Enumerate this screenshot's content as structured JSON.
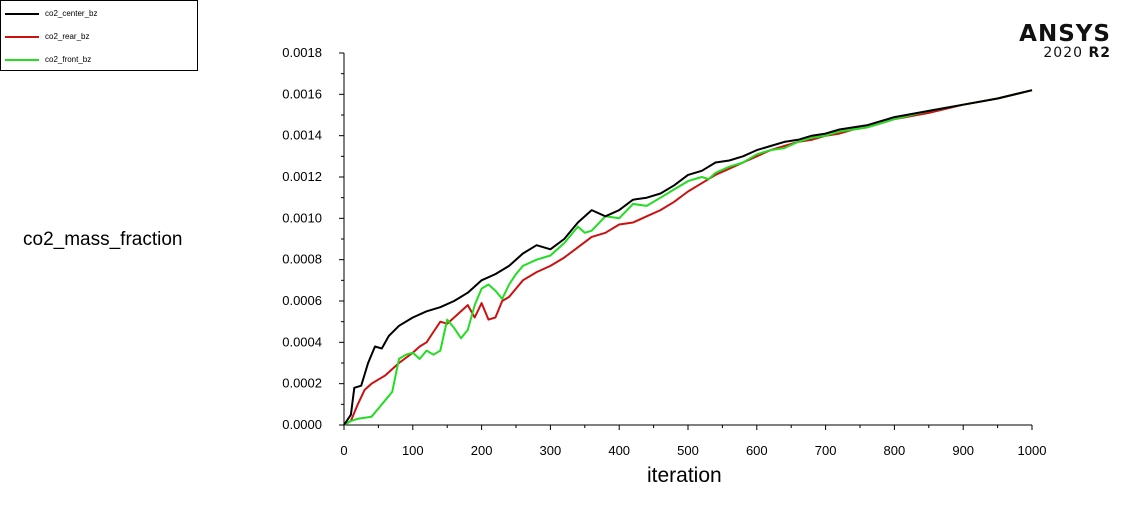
{
  "brand": {
    "name": "ANSYS",
    "version_year": "2020",
    "version_release": "R2"
  },
  "chart_data": {
    "type": "line",
    "title": "",
    "xlabel": "iteration",
    "ylabel": "co2_mass_fraction",
    "xlim": [
      0,
      1000
    ],
    "ylim": [
      0,
      0.0018
    ],
    "x_ticks": [
      "0",
      "100",
      "200",
      "300",
      "400",
      "500",
      "600",
      "700",
      "800",
      "900",
      "1000"
    ],
    "y_ticks": [
      "0.0000",
      "0.0002",
      "0.0004",
      "0.0006",
      "0.0008",
      "0.0010",
      "0.0012",
      "0.0014",
      "0.0016",
      "0.0018"
    ],
    "grid": false,
    "legend_position": "top-left",
    "series": [
      {
        "name": "co2_center_bz",
        "color": "#000000",
        "points": [
          [
            0,
            0
          ],
          [
            10,
            5e-05
          ],
          [
            15,
            0.00018
          ],
          [
            25,
            0.00019
          ],
          [
            35,
            0.0003
          ],
          [
            45,
            0.00038
          ],
          [
            55,
            0.00037
          ],
          [
            65,
            0.00043
          ],
          [
            80,
            0.00048
          ],
          [
            100,
            0.00052
          ],
          [
            120,
            0.00055
          ],
          [
            140,
            0.00057
          ],
          [
            160,
            0.0006
          ],
          [
            180,
            0.00064
          ],
          [
            200,
            0.0007
          ],
          [
            220,
            0.00073
          ],
          [
            240,
            0.00077
          ],
          [
            260,
            0.00083
          ],
          [
            280,
            0.00087
          ],
          [
            300,
            0.00085
          ],
          [
            320,
            0.0009
          ],
          [
            340,
            0.00098
          ],
          [
            360,
            0.00104
          ],
          [
            380,
            0.00101
          ],
          [
            400,
            0.00104
          ],
          [
            420,
            0.00109
          ],
          [
            440,
            0.0011
          ],
          [
            460,
            0.00112
          ],
          [
            480,
            0.00116
          ],
          [
            500,
            0.00121
          ],
          [
            520,
            0.00123
          ],
          [
            540,
            0.00127
          ],
          [
            560,
            0.00128
          ],
          [
            580,
            0.0013
          ],
          [
            600,
            0.00133
          ],
          [
            620,
            0.00135
          ],
          [
            640,
            0.00137
          ],
          [
            660,
            0.00138
          ],
          [
            680,
            0.0014
          ],
          [
            700,
            0.00141
          ],
          [
            720,
            0.00143
          ],
          [
            740,
            0.00144
          ],
          [
            760,
            0.00145
          ],
          [
            780,
            0.00147
          ],
          [
            800,
            0.00149
          ],
          [
            850,
            0.00152
          ],
          [
            900,
            0.00155
          ],
          [
            950,
            0.00158
          ],
          [
            1000,
            0.00162
          ]
        ]
      },
      {
        "name": "co2_rear_bz",
        "color": "#cc1111",
        "points": [
          [
            0,
            0
          ],
          [
            10,
            2e-05
          ],
          [
            20,
            0.0001
          ],
          [
            30,
            0.00017
          ],
          [
            40,
            0.0002
          ],
          [
            60,
            0.00024
          ],
          [
            80,
            0.0003
          ],
          [
            100,
            0.00035
          ],
          [
            110,
            0.00038
          ],
          [
            120,
            0.0004
          ],
          [
            130,
            0.00045
          ],
          [
            140,
            0.0005
          ],
          [
            150,
            0.00049
          ],
          [
            160,
            0.00052
          ],
          [
            170,
            0.00055
          ],
          [
            180,
            0.00058
          ],
          [
            190,
            0.00052
          ],
          [
            200,
            0.00059
          ],
          [
            210,
            0.00051
          ],
          [
            220,
            0.00052
          ],
          [
            230,
            0.0006
          ],
          [
            240,
            0.00062
          ],
          [
            250,
            0.00066
          ],
          [
            260,
            0.0007
          ],
          [
            280,
            0.00074
          ],
          [
            300,
            0.00077
          ],
          [
            320,
            0.00081
          ],
          [
            340,
            0.00086
          ],
          [
            360,
            0.00091
          ],
          [
            380,
            0.00093
          ],
          [
            400,
            0.00097
          ],
          [
            420,
            0.00098
          ],
          [
            440,
            0.00101
          ],
          [
            460,
            0.00104
          ],
          [
            480,
            0.00108
          ],
          [
            500,
            0.00113
          ],
          [
            520,
            0.00117
          ],
          [
            540,
            0.00121
          ],
          [
            560,
            0.00124
          ],
          [
            580,
            0.00127
          ],
          [
            600,
            0.0013
          ],
          [
            620,
            0.00133
          ],
          [
            640,
            0.00135
          ],
          [
            660,
            0.00137
          ],
          [
            680,
            0.00138
          ],
          [
            700,
            0.0014
          ],
          [
            720,
            0.00141
          ],
          [
            740,
            0.00143
          ],
          [
            760,
            0.00144
          ],
          [
            780,
            0.00146
          ],
          [
            800,
            0.00148
          ],
          [
            850,
            0.00151
          ],
          [
            900,
            0.00155
          ],
          [
            950,
            0.00158
          ],
          [
            1000,
            0.00162
          ]
        ]
      },
      {
        "name": "co2_front_bz",
        "color": "#22dd22",
        "points": [
          [
            0,
            0
          ],
          [
            10,
            2e-05
          ],
          [
            20,
            3e-05
          ],
          [
            40,
            4e-05
          ],
          [
            50,
            8e-05
          ],
          [
            60,
            0.00012
          ],
          [
            70,
            0.00016
          ],
          [
            80,
            0.00032
          ],
          [
            90,
            0.00034
          ],
          [
            100,
            0.00035
          ],
          [
            110,
            0.00032
          ],
          [
            120,
            0.00036
          ],
          [
            130,
            0.00034
          ],
          [
            140,
            0.00036
          ],
          [
            150,
            0.00051
          ],
          [
            160,
            0.00047
          ],
          [
            170,
            0.00042
          ],
          [
            180,
            0.00046
          ],
          [
            190,
            0.00058
          ],
          [
            200,
            0.00066
          ],
          [
            210,
            0.00068
          ],
          [
            220,
            0.00065
          ],
          [
            230,
            0.00061
          ],
          [
            240,
            0.00068
          ],
          [
            250,
            0.00073
          ],
          [
            260,
            0.00077
          ],
          [
            280,
            0.0008
          ],
          [
            300,
            0.00082
          ],
          [
            320,
            0.00088
          ],
          [
            340,
            0.00096
          ],
          [
            350,
            0.00093
          ],
          [
            360,
            0.00094
          ],
          [
            380,
            0.00101
          ],
          [
            400,
            0.001
          ],
          [
            420,
            0.00107
          ],
          [
            440,
            0.00106
          ],
          [
            460,
            0.0011
          ],
          [
            480,
            0.00114
          ],
          [
            500,
            0.00118
          ],
          [
            520,
            0.0012
          ],
          [
            530,
            0.00119
          ],
          [
            540,
            0.00122
          ],
          [
            560,
            0.00125
          ],
          [
            580,
            0.00127
          ],
          [
            600,
            0.00131
          ],
          [
            620,
            0.00133
          ],
          [
            640,
            0.00134
          ],
          [
            660,
            0.00137
          ],
          [
            680,
            0.00139
          ],
          [
            700,
            0.0014
          ],
          [
            720,
            0.00142
          ],
          [
            740,
            0.00143
          ],
          [
            760,
            0.00144
          ],
          [
            780,
            0.00146
          ],
          [
            800,
            0.00148
          ],
          [
            850,
            0.00152
          ],
          [
            900,
            0.00155
          ],
          [
            950,
            0.00158
          ],
          [
            1000,
            0.00162
          ]
        ]
      }
    ]
  }
}
